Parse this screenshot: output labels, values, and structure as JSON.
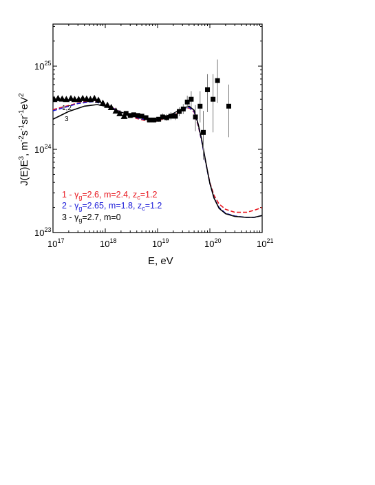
{
  "chart_data": {
    "type": "line",
    "xlabel": "E, eV",
    "ylabel_parts": {
      "a": "J(E)E",
      "b": "3",
      "c": ", m",
      "d": "-2",
      "e": "s",
      "f": "-1",
      "g": "sr",
      "h": "-1",
      "i": "eV",
      "j": "2"
    },
    "x_scale": "log",
    "y_scale": "log",
    "xlim": [
      1e+17,
      1e+21
    ],
    "ylim": [
      1e+23,
      3.2e+25
    ],
    "x_ticks": [
      {
        "base": "10",
        "exp": "17"
      },
      {
        "base": "10",
        "exp": "18"
      },
      {
        "base": "10",
        "exp": "19"
      },
      {
        "base": "10",
        "exp": "20"
      },
      {
        "base": "10",
        "exp": "21"
      }
    ],
    "y_ticks": [
      {
        "base": "10",
        "exp": "23"
      },
      {
        "base": "10",
        "exp": "24"
      },
      {
        "base": "10",
        "exp": "25"
      }
    ],
    "grid": false,
    "legend_placement": "bottom-left",
    "legend": [
      {
        "prefix": "1 - ",
        "g": "γ",
        "gsub": "g",
        "mid": "=2.6, m=2.4, z",
        "zsub": "c",
        "tail": "=1.2",
        "color": "#e8141c"
      },
      {
        "prefix": "2 - ",
        "g": "γ",
        "gsub": "g",
        "mid": "=2.65, m=1.8, z",
        "zsub": "c",
        "tail": "=1.2",
        "color": "#1a1ad8"
      },
      {
        "prefix": "3 - ",
        "g": "γ",
        "gsub": "g",
        "mid": "=2.7, m=0",
        "zsub": "",
        "tail": "",
        "color": "#000000"
      }
    ],
    "curve_labels": {
      "one_two": "1,2",
      "three": "3"
    },
    "series": [
      {
        "style": "dashed",
        "color": "#e8141c",
        "x": [
          1e+17,
          3e+17,
          6e+17,
          1e+18,
          2e+18,
          4e+18,
          7e+18,
          1e+19,
          2e+19,
          3e+19,
          4e+19,
          5e+19,
          6e+19,
          7e+19,
          8e+19,
          9e+19,
          1e+20,
          1.2e+20,
          1.5e+20,
          2e+20,
          3e+20,
          5e+20,
          7e+20,
          1e+21
        ],
        "y": [
          3e+24,
          3.6e+24,
          3.85e+24,
          3.5e+24,
          2.8e+24,
          2.35e+24,
          2.15e+24,
          2.2e+24,
          2.55e+24,
          2.95e+24,
          3.15e+24,
          2.8e+24,
          1.9e+24,
          1.25e+24,
          8e+23,
          5.5e+23,
          4e+23,
          2.8e+23,
          2.2e+23,
          1.9e+23,
          1.75e+23,
          1.75e+23,
          1.85e+23,
          2e+23
        ]
      },
      {
        "style": "dashed",
        "color": "#1a1ad8",
        "x": [
          1e+17,
          3e+17,
          6e+17,
          1e+18,
          2e+18,
          4e+18,
          7e+18,
          1e+19,
          2e+19,
          3e+19,
          4e+19,
          5e+19,
          6e+19,
          7e+19,
          8e+19,
          9e+19,
          1e+20,
          1.2e+20,
          1.5e+20,
          2e+20,
          3e+20,
          5e+20,
          7e+20,
          1e+21
        ],
        "y": [
          2.9e+24,
          3.55e+24,
          3.75e+24,
          3.45e+24,
          2.8e+24,
          2.4e+24,
          2.2e+24,
          2.25e+24,
          2.6e+24,
          3e+24,
          3.2e+24,
          2.85e+24,
          1.95e+24,
          1.25e+24,
          8e+23,
          5.4e+23,
          3.9e+23,
          2.6e+23,
          2e+23,
          1.7e+23,
          1.58e+23,
          1.52e+23,
          1.52e+23,
          1.6e+23
        ]
      },
      {
        "style": "solid",
        "color": "#000000",
        "x": [
          1e+17,
          2e+17,
          4e+17,
          7e+17,
          1e+18,
          2e+18,
          4e+18,
          7e+18,
          1e+19,
          2e+19,
          3e+19,
          4e+19,
          5e+19,
          6e+19,
          7e+19,
          8e+19,
          9e+19,
          1e+20,
          1.2e+20,
          1.5e+20,
          2e+20,
          3e+20,
          5e+20,
          7e+20,
          1e+21
        ],
        "y": [
          2.3e+24,
          2.85e+24,
          3.3e+24,
          3.45e+24,
          3.3e+24,
          2.8e+24,
          2.45e+24,
          2.3e+24,
          2.3e+24,
          2.7e+24,
          3.1e+24,
          3.3e+24,
          2.95e+24,
          2e+24,
          1.3e+24,
          8.2e+23,
          5.5e+23,
          3.9e+23,
          2.6e+23,
          1.95e+23,
          1.68e+23,
          1.56e+23,
          1.52e+23,
          1.52e+23,
          1.6e+23
        ]
      }
    ],
    "triangles": {
      "x": [
        1.05e+17,
        1.25e+17,
        1.5e+17,
        1.8e+17,
        2.2e+17,
        2.6e+17,
        3.1e+17,
        3.7e+17,
        4.4e+17,
        5.2e+17,
        6.2e+17,
        7.4e+17,
        9e+17,
        1.1e+18,
        1.3e+18,
        1.6e+18,
        1.9e+18,
        2.3e+18
      ],
      "y": [
        4e+24,
        4.1e+24,
        4.05e+24,
        4e+24,
        4.1e+24,
        4e+24,
        4e+24,
        4.1e+24,
        4.05e+24,
        4e+24,
        4.1e+24,
        3.9e+24,
        3.6e+24,
        3.4e+24,
        3.2e+24,
        2.9e+24,
        2.7e+24,
        2.5e+24
      ]
    },
    "squares": {
      "x": [
        2.5e+18,
        3e+18,
        3.5e+18,
        4.2e+18,
        5e+18,
        6e+18,
        7e+18,
        8.5e+18,
        1.05e+19,
        1.25e+19,
        1.5e+19,
        1.8e+19,
        2.2e+19,
        2.6e+19,
        3.1e+19,
        3.7e+19,
        4.4e+19,
        5.3e+19,
        6.5e+19,
        7.5e+19,
        9e+19,
        1.15e+20,
        1.4e+20,
        2.3e+20
      ],
      "y": [
        2.7e+24,
        2.55e+24,
        2.6e+24,
        2.55e+24,
        2.5e+24,
        2.4e+24,
        2.25e+24,
        2.25e+24,
        2.3e+24,
        2.45e+24,
        2.4e+24,
        2.5e+24,
        2.5e+24,
        2.85e+24,
        3.05e+24,
        3.7e+24,
        4e+24,
        2.45e+24,
        3.3e+24,
        1.6e+24,
        5.2e+24,
        4e+24,
        6.7e+24,
        3.3e+24
      ],
      "ylo": [
        2.55e+24,
        2.4e+24,
        2.45e+24,
        2.4e+24,
        2.35e+24,
        2.25e+24,
        2.1e+24,
        2.1e+24,
        2.15e+24,
        2.25e+24,
        2.2e+24,
        2.25e+24,
        2.25e+24,
        2.5e+24,
        2.65e+24,
        3.1e+24,
        3.2e+24,
        1.65e+24,
        2.1e+24,
        7.5e+23,
        2.8e+24,
        1.6e+24,
        3.6e+24,
        1.4e+24
      ],
      "yhi": [
        2.85e+24,
        2.7e+24,
        2.75e+24,
        2.7e+24,
        2.65e+24,
        2.55e+24,
        2.4e+24,
        2.4e+24,
        2.45e+24,
        2.7e+24,
        2.65e+24,
        2.8e+24,
        2.8e+24,
        3.2e+24,
        3.5e+24,
        4.4e+24,
        5e+24,
        3.4e+24,
        5e+24,
        2.9e+24,
        8e+24,
        8e+24,
        1.2e+25,
        6e+24
      ]
    }
  }
}
